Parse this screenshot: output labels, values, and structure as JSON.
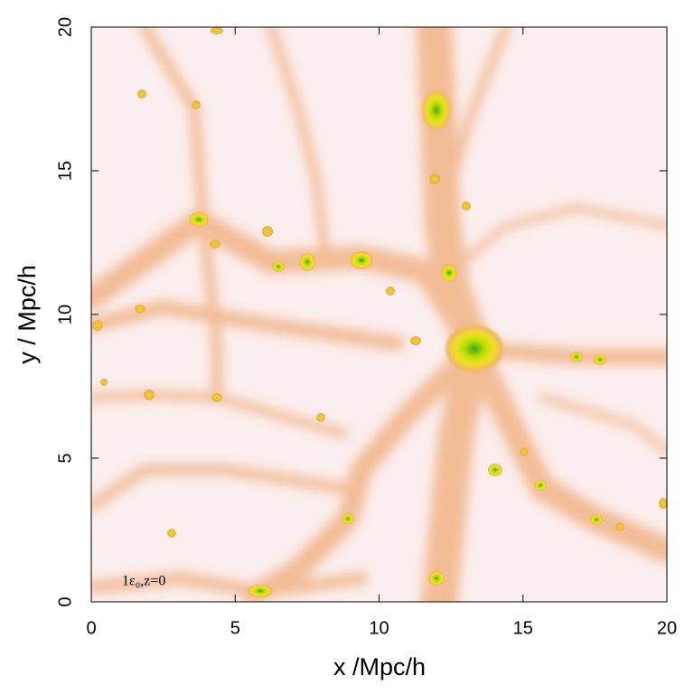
{
  "chart_data": {
    "type": "image",
    "xlabel": "x /Mpc/h",
    "ylabel": "y / Mpc/h",
    "xlim": [
      0,
      20
    ],
    "ylim": [
      0,
      20
    ],
    "xticks": [
      0,
      5,
      10,
      15,
      20
    ],
    "yticks": [
      0,
      5,
      10,
      15,
      20
    ],
    "annotation": "1ε₀,z=0"
  }
}
